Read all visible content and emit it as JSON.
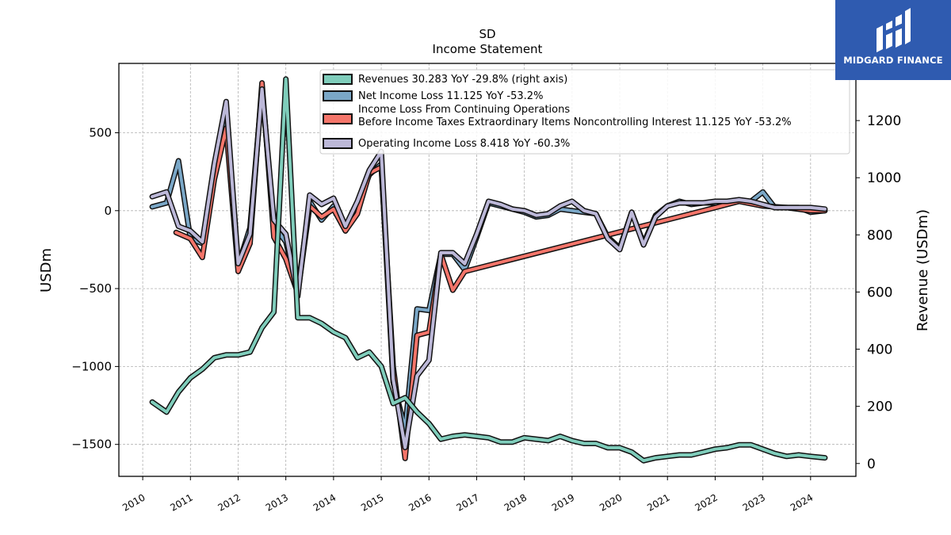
{
  "brand": {
    "name": "MIDGARD FINANCE",
    "bg": "#2f5bb0"
  },
  "chart_data": {
    "type": "line",
    "title": "SD",
    "subtitle": "Income Statement",
    "ylabel": "USDm",
    "ylabel_right": "Revenue (USDm)",
    "xlim": [
      2009.5,
      2024.95
    ],
    "ylim": [
      -1705,
      945
    ],
    "ylim_right": [
      -45,
      1400
    ],
    "x_ticks": [
      2010,
      2011,
      2012,
      2013,
      2014,
      2015,
      2016,
      2017,
      2018,
      2019,
      2020,
      2021,
      2022,
      2023,
      2024
    ],
    "x_tick_labels": [
      "2010",
      "2011",
      "2012",
      "2013",
      "2014",
      "2015",
      "2016",
      "2017",
      "2018",
      "2019",
      "2020",
      "2021",
      "2022",
      "2023",
      "2024"
    ],
    "y_ticks": [
      -1500,
      -1000,
      -500,
      0,
      500
    ],
    "y_tick_labels": [
      "−1500",
      "−1000",
      "−500",
      "0",
      "500"
    ],
    "y_ticks_right": [
      0,
      200,
      400,
      600,
      800,
      1000,
      1200
    ],
    "y_tick_labels_right": [
      "0",
      "200",
      "400",
      "600",
      "800",
      "1000",
      "1200"
    ],
    "grid": true,
    "legend_position": "top-center",
    "legend": [
      {
        "label": "Revenues  30.283 YoY -29.8% (right axis)",
        "color": "#7fcdbb"
      },
      {
        "label": "Net Income Loss  11.125 YoY -53.2%",
        "color": "#7aa7c7"
      },
      {
        "label": "Income Loss From Continuing Operations\nBefore Income Taxes Extraordinary Items Noncontrolling Interest  11.125 YoY -53.2%",
        "color": "#f4756a"
      },
      {
        "label": "Operating Income Loss  8.418 YoY -60.3%",
        "color": "#bcb8d8"
      }
    ],
    "series": [
      {
        "name": "Net Income Loss",
        "color": "#7aa7c7",
        "axis": "left",
        "x": [
          2010.2,
          2010.5,
          2010.75,
          2011.0,
          2011.25,
          2011.5,
          2011.75,
          2012.0,
          2012.25,
          2012.5,
          2012.75,
          2013.0,
          2013.25,
          2013.5,
          2013.75,
          2014.0,
          2014.25,
          2014.5,
          2014.75,
          2015.0,
          2015.25,
          2015.5,
          2015.75,
          2016.0,
          2016.25,
          2016.5,
          2016.75,
          2017.0,
          2017.25,
          2017.5,
          2017.75,
          2018.0,
          2018.25,
          2018.5,
          2018.75,
          2019.0,
          2019.25,
          2019.5,
          2019.75,
          2020.0,
          2020.25,
          2020.5,
          2020.75,
          2021.0,
          2021.25,
          2021.5,
          2021.75,
          2022.0,
          2022.25,
          2022.5,
          2022.75,
          2023.0,
          2023.25,
          2023.5,
          2023.75,
          2024.0,
          2024.3
        ],
        "values": [
          25,
          50,
          320,
          -180,
          -210,
          230,
          620,
          -350,
          -110,
          780,
          -100,
          -200,
          -510,
          60,
          -60,
          30,
          -130,
          40,
          230,
          300,
          -1100,
          -1400,
          -630,
          -640,
          -280,
          -280,
          -380,
          -170,
          50,
          30,
          10,
          -10,
          -40,
          -30,
          10,
          0,
          -10,
          -20,
          -170,
          -240,
          -10,
          -210,
          -30,
          30,
          60,
          40,
          50,
          50,
          50,
          60,
          60,
          120,
          20,
          20,
          20,
          -10,
          0
        ]
      },
      {
        "name": "Income Loss From Continuing Operations Before Income Taxes Extraordinary Items Noncontrolling Interest",
        "color": "#f4756a",
        "axis": "left",
        "x": [
          2010.7,
          2011.0,
          2011.25,
          2011.5,
          2011.75,
          2012.0,
          2012.25,
          2012.5,
          2012.75,
          2013.0,
          2013.25,
          2013.5,
          2013.75,
          2014.0,
          2014.25,
          2014.5,
          2014.75,
          2015.0,
          2015.25,
          2015.5,
          2015.75,
          2016.0,
          2016.25,
          2016.5,
          2016.75,
          2022.0,
          2022.5,
          2023.0,
          2023.5,
          2024.0,
          2024.3
        ],
        "values": [
          -140,
          -180,
          -300,
          200,
          530,
          -390,
          -210,
          820,
          -170,
          -310,
          -530,
          30,
          -40,
          10,
          -130,
          -20,
          240,
          280,
          -1000,
          -1590,
          -800,
          -780,
          -280,
          -510,
          -390,
          20,
          60,
          30,
          20,
          0,
          0
        ]
      },
      {
        "name": "Operating Income Loss",
        "color": "#bcb8d8",
        "axis": "left",
        "x": [
          2010.2,
          2010.5,
          2010.75,
          2011.0,
          2011.25,
          2011.5,
          2011.75,
          2012.0,
          2012.25,
          2012.5,
          2012.75,
          2013.0,
          2013.25,
          2013.5,
          2013.75,
          2014.0,
          2014.25,
          2014.5,
          2014.75,
          2015.0,
          2015.25,
          2015.5,
          2015.75,
          2016.0,
          2016.25,
          2016.5,
          2016.75,
          2017.0,
          2017.25,
          2017.5,
          2017.75,
          2018.0,
          2018.25,
          2018.5,
          2018.75,
          2019.0,
          2019.25,
          2019.5,
          2019.75,
          2020.0,
          2020.25,
          2020.5,
          2020.75,
          2021.0,
          2021.25,
          2021.5,
          2021.75,
          2022.0,
          2022.25,
          2022.5,
          2022.75,
          2023.0,
          2023.25,
          2023.5,
          2023.75,
          2024.0,
          2024.3
        ],
        "values": [
          90,
          120,
          -100,
          -130,
          -200,
          300,
          700,
          -340,
          -150,
          780,
          -60,
          -150,
          -550,
          100,
          40,
          80,
          -100,
          60,
          260,
          380,
          -1080,
          -1520,
          -1060,
          -960,
          -270,
          -270,
          -340,
          -150,
          60,
          40,
          10,
          0,
          -30,
          -20,
          30,
          60,
          0,
          -20,
          -180,
          -250,
          -10,
          -220,
          -40,
          30,
          50,
          50,
          50,
          60,
          60,
          70,
          60,
          40,
          20,
          20,
          20,
          20,
          10
        ]
      },
      {
        "name": "Revenues",
        "color": "#7fcdbb",
        "axis": "right",
        "x": [
          2010.2,
          2010.5,
          2010.75,
          2011.0,
          2011.25,
          2011.5,
          2011.75,
          2012.0,
          2012.25,
          2012.5,
          2012.75,
          2013.0,
          2013.25,
          2013.5,
          2013.75,
          2014.0,
          2014.25,
          2014.5,
          2014.75,
          2015.0,
          2015.25,
          2015.5,
          2015.75,
          2016.0,
          2016.25,
          2016.5,
          2016.75,
          2017.0,
          2017.25,
          2017.5,
          2017.75,
          2018.0,
          2018.25,
          2018.5,
          2018.75,
          2019.0,
          2019.25,
          2019.5,
          2019.75,
          2020.0,
          2020.25,
          2020.5,
          2020.75,
          2021.0,
          2021.25,
          2021.5,
          2021.75,
          2022.0,
          2022.25,
          2022.5,
          2022.75,
          2023.0,
          2023.25,
          2023.5,
          2023.75,
          2024.0,
          2024.3
        ],
        "values": [
          215,
          180,
          250,
          300,
          330,
          370,
          380,
          380,
          390,
          475,
          530,
          1345,
          510,
          510,
          490,
          460,
          440,
          370,
          390,
          340,
          210,
          230,
          180,
          140,
          85,
          95,
          100,
          95,
          90,
          75,
          75,
          90,
          85,
          80,
          95,
          80,
          70,
          70,
          55,
          55,
          40,
          10,
          20,
          25,
          30,
          30,
          40,
          50,
          55,
          65,
          65,
          50,
          35,
          25,
          30,
          25,
          20
        ]
      }
    ]
  }
}
